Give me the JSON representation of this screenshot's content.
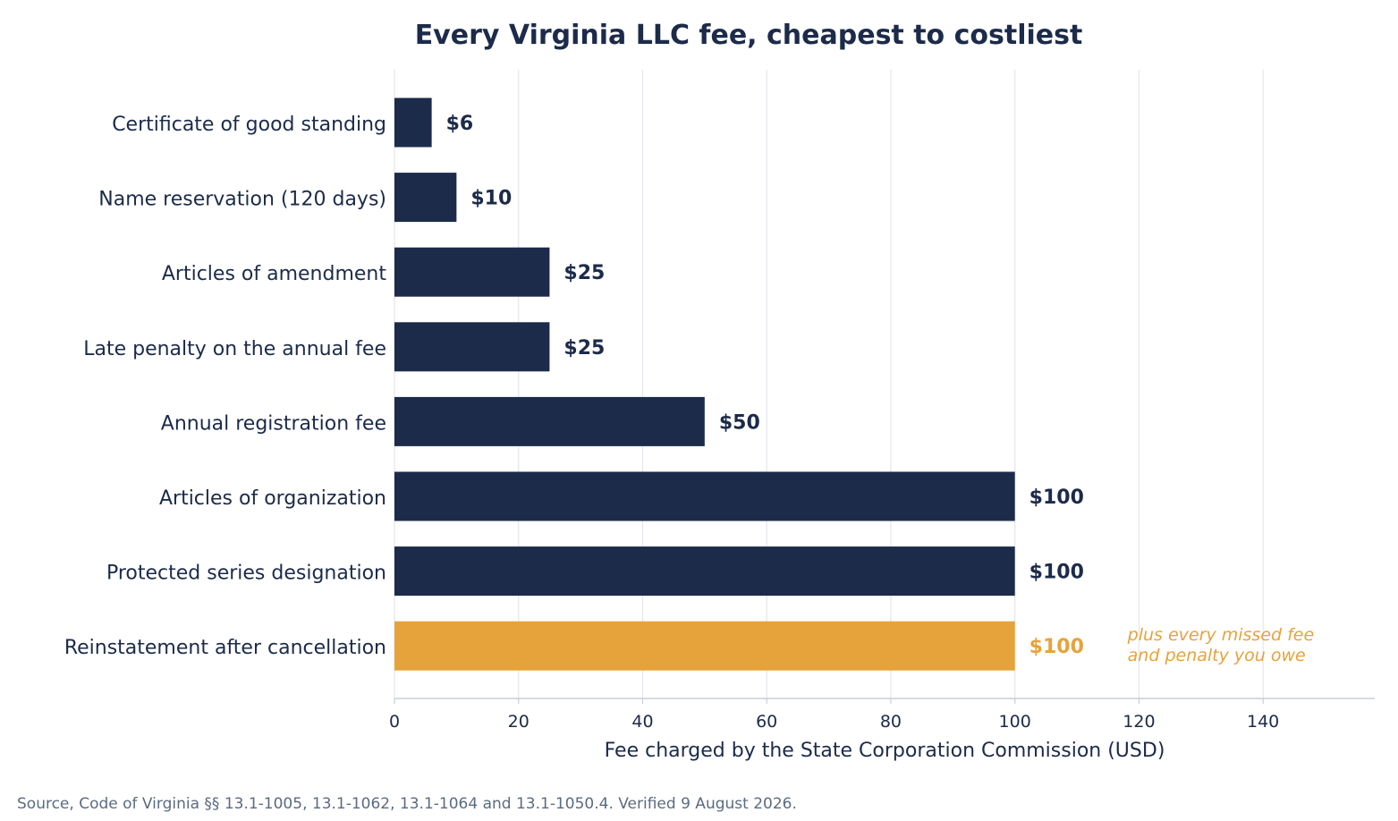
{
  "colors": {
    "bar": "#1c2b4a",
    "highlight": "#e6a33b",
    "text": "#1c2b4a",
    "grid": "#e3e6ec",
    "axis": "#c9ced8",
    "source": "#5b6b80"
  },
  "chart_data": {
    "type": "bar",
    "orientation": "horizontal",
    "title": "Every Virginia LLC fee, cheapest to costliest",
    "xlabel": "Fee charged by the State Corporation Commission (USD)",
    "ylabel": "",
    "xlim": [
      0,
      158
    ],
    "xticks": [
      0,
      20,
      40,
      60,
      80,
      100,
      120,
      140
    ],
    "grid": "vertical",
    "categories": [
      "Certificate of good standing",
      "Name reservation (120 days)",
      "Articles of amendment",
      "Late penalty on the annual fee",
      "Annual registration fee",
      "Articles of organization",
      "Protected series designation",
      "Reinstatement after cancellation"
    ],
    "values": [
      6,
      10,
      25,
      25,
      50,
      100,
      100,
      100
    ],
    "value_labels": [
      "$6",
      "$10",
      "$25",
      "$25",
      "$50",
      "$100",
      "$100",
      "$100"
    ],
    "highlight": [
      false,
      false,
      false,
      false,
      false,
      false,
      false,
      true
    ],
    "annotations": [
      {
        "category_index": 7,
        "lines": [
          "plus every missed fee",
          "and penalty you owe"
        ]
      }
    ]
  },
  "footer": {
    "source": "Source, Code of Virginia §§ 13.1-1005, 13.1-1062, 13.1-1064 and 13.1-1050.4. Verified 9 August 2026."
  }
}
